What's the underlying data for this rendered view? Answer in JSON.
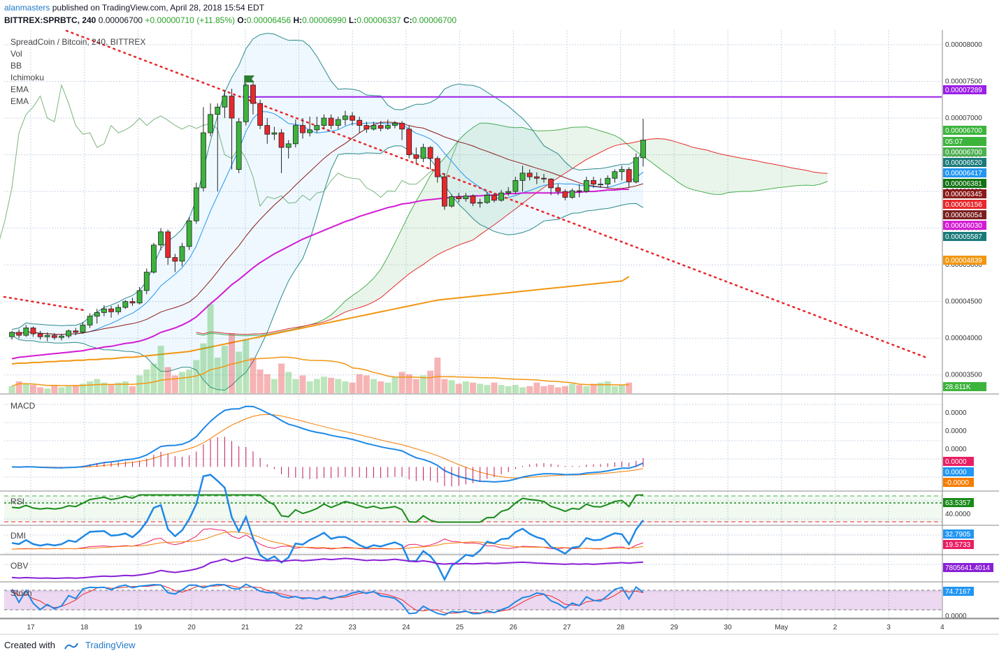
{
  "header": {
    "user": "alanmasters",
    "published_text": "published on TradingView.com, April 28, 2018 15:54 EDT",
    "symbol": "BITTREX:SPRBTC, 240",
    "last": "0.00006700",
    "change": "+0.00000710 (+11.85%)",
    "o_label": "O:",
    "o_value": "0.00006456",
    "h_label": "H:",
    "h_value": "0.00006990",
    "l_label": "L:",
    "l_value": "0.00006337",
    "c_label": "C:",
    "c_value": "0.00006700"
  },
  "legend": {
    "title": "SpreadCoin / Bitcoin, 240, BITTREX",
    "items": [
      "Vol",
      "BB",
      "Ichimoku",
      "EMA",
      "EMA"
    ]
  },
  "panes": {
    "macd": "MACD",
    "rsi": "RSI",
    "dmi": "DMI",
    "obv": "OBV",
    "stoch": "Stoch"
  },
  "footer": {
    "created_with": "Created with",
    "brand": "TradingView"
  },
  "colors": {
    "up": "#3cb43c",
    "down": "#e8282c",
    "grid": "#c8d4e6",
    "bb": "#2a8a8a",
    "ema50": "#d31bd3",
    "ema200": "#f2960f",
    "resistance": "#9a20e6",
    "trendline": "#e8282c"
  },
  "chart_data": [
    {
      "type": "candlestick",
      "title": "SpreadCoin / Bitcoin, 240, BITTREX",
      "x_ticks": [
        "17",
        "18",
        "19",
        "20",
        "21",
        "22",
        "23",
        "24",
        "25",
        "26",
        "27",
        "28",
        "29",
        "30",
        "May",
        "2",
        "3",
        "4"
      ],
      "y_ticks": [
        "0.00008000",
        "0.00007500",
        "0.00007000",
        "0.00006500",
        "0.00006000",
        "0.00005500",
        "0.00005000",
        "0.00004500",
        "0.00004000",
        "0.00003500"
      ],
      "ylim": [
        3.25e-05,
        8.2e-05
      ],
      "price_labels": [
        {
          "text": "0.00007289",
          "color": "#9a20e6"
        },
        {
          "text": "0.00006700",
          "color": "#3cb43c"
        },
        {
          "text": "05:07",
          "color": "#3cb43c"
        },
        {
          "text": "0.00006700",
          "color": "#4caf50"
        },
        {
          "text": "0.00006520",
          "color": "#1a7a7a"
        },
        {
          "text": "0.00006417",
          "color": "#2196f3"
        },
        {
          "text": "0.00006381",
          "color": "#137313"
        },
        {
          "text": "0.00006345",
          "color": "#8b1a1a"
        },
        {
          "text": "0.00006156",
          "color": "#e8282c"
        },
        {
          "text": "0.00006054",
          "color": "#7a1f1f"
        },
        {
          "text": "0.00006030",
          "color": "#d31bd3"
        },
        {
          "text": "0.00005587",
          "color": "#1a7a7a"
        },
        {
          "text": "0.00004839",
          "color": "#f2960f"
        },
        {
          "text": "28.611K",
          "color": "#3cb43c"
        }
      ],
      "resistance": 7.289e-05,
      "candles": [
        [
          4.02e-05,
          4.08e-05,
          3.98e-05,
          4.1e-05
        ],
        [
          4.08e-05,
          4.04e-05,
          4e-05,
          4.12e-05
        ],
        [
          4.04e-05,
          4.14e-05,
          4.02e-05,
          4.18e-05
        ],
        [
          4.14e-05,
          4.06e-05,
          4.02e-05,
          4.16e-05
        ],
        [
          4.06e-05,
          4.02e-05,
          3.98e-05,
          4.1e-05
        ],
        [
          4.02e-05,
          4.04e-05,
          3.96e-05,
          4.08e-05
        ],
        [
          4.04e-05,
          4.01e-05,
          3.98e-05,
          4.07e-05
        ],
        [
          4.01e-05,
          4.03e-05,
          3.97e-05,
          4.06e-05
        ],
        [
          4.03e-05,
          4.1e-05,
          4e-05,
          4.12e-05
        ],
        [
          4.1e-05,
          4.08e-05,
          4.04e-05,
          4.14e-05
        ],
        [
          4.08e-05,
          4.18e-05,
          4.06e-05,
          4.22e-05
        ],
        [
          4.18e-05,
          4.3e-05,
          4.14e-05,
          4.34e-05
        ],
        [
          4.3e-05,
          4.35e-05,
          4.2e-05,
          4.4e-05
        ],
        [
          4.35e-05,
          4.4e-05,
          4.3e-05,
          4.45e-05
        ],
        [
          4.4e-05,
          4.36e-05,
          4.28e-05,
          4.44e-05
        ],
        [
          4.36e-05,
          4.42e-05,
          4.32e-05,
          4.46e-05
        ],
        [
          4.42e-05,
          4.5e-05,
          4.4e-05,
          4.52e-05
        ],
        [
          4.5e-05,
          4.48e-05,
          4.44e-05,
          4.55e-05
        ],
        [
          4.48e-05,
          4.65e-05,
          4.46e-05,
          4.7e-05
        ],
        [
          4.65e-05,
          4.9e-05,
          4.6e-05,
          4.95e-05
        ],
        [
          4.9e-05,
          5.27e-05,
          4.88e-05,
          5.3e-05
        ],
        [
          5.27e-05,
          5.45e-05,
          5.2e-05,
          5.5e-05
        ],
        [
          5.45e-05,
          5.1e-05,
          5e-05,
          5.48e-05
        ],
        [
          5.1e-05,
          5.05e-05,
          4.9e-05,
          5.15e-05
        ],
        [
          5.05e-05,
          5.25e-05,
          4.98e-05,
          5.3e-05
        ],
        [
          5.25e-05,
          5.6e-05,
          5.2e-05,
          5.65e-05
        ],
        [
          5.6e-05,
          6.05e-05,
          5.56e-05,
          6.12e-05
        ],
        [
          6.05e-05,
          6.8e-05,
          6e-05,
          7.15e-05
        ],
        [
          6.8e-05,
          7.05e-05,
          6.75e-05,
          7.2e-05
        ],
        [
          7.05e-05,
          7.15e-05,
          6e-05,
          7.2e-05
        ],
        [
          7.15e-05,
          7.3e-05,
          7e-05,
          7.38e-05
        ],
        [
          7.3e-05,
          7e-05,
          6.3e-05,
          7.4e-05
        ],
        [
          6.3e-05,
          6.95e-05,
          6.25e-05,
          7e-05
        ],
        [
          6.95e-05,
          7.45e-05,
          6.9e-05,
          7.48e-05
        ],
        [
          7.45e-05,
          7.2e-05,
          7.05e-05,
          7.48e-05
        ],
        [
          7.2e-05,
          6.9e-05,
          6.85e-05,
          7.25e-05
        ],
        [
          6.9e-05,
          6.78e-05,
          6.65e-05,
          7e-05
        ],
        [
          6.78e-05,
          6.8e-05,
          6.7e-05,
          6.88e-05
        ],
        [
          6.8e-05,
          6.6e-05,
          6.25e-05,
          6.85e-05
        ],
        [
          6.6e-05,
          6.65e-05,
          6.45e-05,
          6.7e-05
        ],
        [
          6.65e-05,
          6.9e-05,
          6.6e-05,
          6.98e-05
        ],
        [
          6.9e-05,
          6.8e-05,
          6.72e-05,
          7e-05
        ],
        [
          6.8e-05,
          6.84e-05,
          6.75e-05,
          7.02e-05
        ],
        [
          6.84e-05,
          6.9e-05,
          6.8e-05,
          7.02e-05
        ],
        [
          6.9e-05,
          7e-05,
          6.85e-05,
          7.05e-05
        ],
        [
          7e-05,
          6.9e-05,
          6.85e-05,
          7.05e-05
        ],
        [
          6.9e-05,
          6.98e-05,
          6.85e-05,
          7.02e-05
        ],
        [
          6.98e-05,
          7.03e-05,
          6.9e-05,
          7.1e-05
        ],
        [
          7.03e-05,
          6.97e-05,
          6.9e-05,
          7.08e-05
        ],
        [
          6.97e-05,
          6.9e-05,
          6.8e-05,
          7.02e-05
        ],
        [
          6.9e-05,
          6.85e-05,
          6.8e-05,
          6.95e-05
        ],
        [
          6.85e-05,
          6.9e-05,
          6.83e-05,
          6.95e-05
        ],
        [
          6.9e-05,
          6.86e-05,
          6.82e-05,
          6.96e-05
        ],
        [
          6.86e-05,
          6.9e-05,
          6.84e-05,
          6.98e-05
        ],
        [
          6.9e-05,
          6.93e-05,
          6.86e-05,
          6.96e-05
        ],
        [
          6.93e-05,
          6.85e-05,
          6.7e-05,
          6.96e-05
        ],
        [
          6.85e-05,
          6.5e-05,
          6.45e-05,
          6.9e-05
        ],
        [
          6.5e-05,
          6.45e-05,
          6.38e-05,
          6.6e-05
        ],
        [
          6.45e-05,
          6.6e-05,
          6.4e-05,
          6.65e-05
        ],
        [
          6.6e-05,
          6.45e-05,
          6.3e-05,
          6.62e-05
        ],
        [
          6.45e-05,
          6.2e-05,
          6.12e-05,
          6.48e-05
        ],
        [
          6.2e-05,
          5.8e-05,
          5.75e-05,
          6.25e-05
        ],
        [
          5.8e-05,
          5.93e-05,
          5.78e-05,
          5.96e-05
        ],
        [
          5.93e-05,
          5.9e-05,
          5.85e-05,
          5.98e-05
        ],
        [
          5.9e-05,
          5.94e-05,
          5.86e-05,
          5.98e-05
        ],
        [
          5.94e-05,
          5.84e-05,
          5.8e-05,
          5.96e-05
        ],
        [
          5.84e-05,
          5.85e-05,
          5.78e-05,
          5.9e-05
        ],
        [
          5.85e-05,
          5.95e-05,
          5.83e-05,
          6e-05
        ],
        [
          5.95e-05,
          5.88e-05,
          5.85e-05,
          5.98e-05
        ],
        [
          5.88e-05,
          5.98e-05,
          5.86e-05,
          6.02e-05
        ],
        [
          5.98e-05,
          6e-05,
          5.94e-05,
          6.06e-05
        ],
        [
          6e-05,
          6.15e-05,
          5.96e-05,
          6.2e-05
        ],
        [
          6.15e-05,
          6.25e-05,
          6e-05,
          6.35e-05
        ],
        [
          6.25e-05,
          6.2e-05,
          6.15e-05,
          6.3e-05
        ],
        [
          6.2e-05,
          6.18e-05,
          6.1e-05,
          6.26e-05
        ],
        [
          6.18e-05,
          6.17e-05,
          6.12e-05,
          6.24e-05
        ],
        [
          6.17e-05,
          6.05e-05,
          5.95e-05,
          6.18e-05
        ],
        [
          6.05e-05,
          6e-05,
          5.95e-05,
          6.1e-05
        ],
        [
          6e-05,
          5.92e-05,
          5.88e-05,
          6.03e-05
        ],
        [
          5.92e-05,
          6.01e-05,
          5.9e-05,
          6.04e-05
        ],
        [
          6.01e-05,
          6e-05,
          5.92e-05,
          6.1e-05
        ],
        [
          6e-05,
          6.15e-05,
          5.98e-05,
          6.2e-05
        ],
        [
          6.15e-05,
          6.1e-05,
          6.05e-05,
          6.2e-05
        ],
        [
          6.1e-05,
          6.1e-05,
          6.05e-05,
          6.18e-05
        ],
        [
          6.1e-05,
          6.18e-05,
          6.05e-05,
          6.22e-05
        ],
        [
          6.18e-05,
          6.27e-05,
          6.12e-05,
          6.3e-05
        ],
        [
          6.27e-05,
          6.3e-05,
          6.15e-05,
          6.35e-05
        ],
        [
          6.3e-05,
          6.13e-05,
          6.05e-05,
          6.33e-05
        ],
        [
          6.13e-05,
          6.46e-05,
          6.11e-05,
          6.52e-05
        ],
        [
          6.46e-05,
          6.7e-05,
          6.34e-05,
          6.99e-05
        ]
      ],
      "volume": [
        0.6,
        1.0,
        0.8,
        0.7,
        0.5,
        0.4,
        0.7,
        0.5,
        0.6,
        0.7,
        0.8,
        1.0,
        1.2,
        0.9,
        0.7,
        0.9,
        1.0,
        0.6,
        1.5,
        2.0,
        2.5,
        4.0,
        2.2,
        1.5,
        1.8,
        2.0,
        2.8,
        4.2,
        7.5,
        3.0,
        4.0,
        5.0,
        3.5,
        4.5,
        3.0,
        2.0,
        1.6,
        1.2,
        2.5,
        1.8,
        1.2,
        1.5,
        1.0,
        1.2,
        1.4,
        1.3,
        1.2,
        1.0,
        0.9,
        1.6,
        1.5,
        1.2,
        1.0,
        0.9,
        1.4,
        1.8,
        1.6,
        1.2,
        1.5,
        1.9,
        3.0,
        1.2,
        1.1,
        0.8,
        1.0,
        0.9,
        0.8,
        0.7,
        0.9,
        0.7,
        0.6,
        0.7,
        0.5,
        0.6,
        0.9,
        0.6,
        0.7,
        0.5,
        0.6,
        0.8,
        0.7,
        0.6,
        0.8,
        0.9,
        1.0,
        0.6,
        0.7,
        0.9
      ],
      "ema50": [
        3.72e-05,
        3.74e-05,
        3.75e-05,
        3.76e-05,
        3.77e-05,
        3.78e-05,
        3.79e-05,
        3.8e-05,
        3.81e-05,
        3.82e-05,
        3.83e-05,
        3.85e-05,
        3.86e-05,
        3.88e-05,
        3.89e-05,
        3.91e-05,
        3.93e-05,
        3.94e-05,
        3.96e-05,
        3.99e-05,
        4.03e-05,
        4.08e-05,
        4.11e-05,
        4.14e-05,
        4.18e-05,
        4.23e-05,
        4.29e-05,
        4.38e-05,
        4.47e-05,
        4.55e-05,
        4.64e-05,
        4.73e-05,
        4.8e-05,
        4.88e-05,
        4.96e-05,
        5.03e-05,
        5.09e-05,
        5.15e-05,
        5.2e-05,
        5.25e-05,
        5.3e-05,
        5.35e-05,
        5.39e-05,
        5.43e-05,
        5.47e-05,
        5.51e-05,
        5.55e-05,
        5.59e-05,
        5.62e-05,
        5.66e-05,
        5.69e-05,
        5.72e-05,
        5.75e-05,
        5.78e-05,
        5.8e-05,
        5.83e-05,
        5.84e-05,
        5.86e-05,
        5.88e-05,
        5.89e-05,
        5.9e-05,
        5.91e-05,
        5.92e-05,
        5.93e-05,
        5.93e-05,
        5.94e-05,
        5.94e-05,
        5.95e-05,
        5.95e-05,
        5.96e-05,
        5.97e-05,
        5.97e-05,
        5.98e-05,
        5.98e-05,
        5.98e-05,
        5.98e-05,
        5.98e-05,
        5.98e-05,
        5.99e-05,
        5.99e-05,
        5.99e-05,
        6e-05,
        6e-05,
        6.01e-05,
        6.02e-05,
        6.02e-05,
        6.03e-05,
        6.03e-05
      ],
      "ema200": [
        3.65e-05,
        3.66e-05,
        3.66e-05,
        3.67e-05,
        3.67e-05,
        3.68e-05,
        3.68e-05,
        3.69e-05,
        3.69e-05,
        3.7e-05,
        3.7e-05,
        3.71e-05,
        3.71e-05,
        3.72e-05,
        3.72e-05,
        3.73e-05,
        3.74e-05,
        3.74e-05,
        3.75e-05,
        3.76e-05,
        3.77e-05,
        3.78e-05,
        3.79e-05,
        3.8e-05,
        3.81e-05,
        3.82e-05,
        3.84e-05,
        3.86e-05,
        3.88e-05,
        3.9e-05,
        3.92e-05,
        3.94e-05,
        3.96e-05,
        3.98e-05,
        4e-05,
        4.02e-05,
        4.04e-05,
        4.06e-05,
        4.08e-05,
        4.1e-05,
        4.12e-05,
        4.14e-05,
        4.16e-05,
        4.18e-05,
        4.2e-05,
        4.22e-05,
        4.24e-05,
        4.26e-05,
        4.28e-05,
        4.3e-05,
        4.32e-05,
        4.34e-05,
        4.36e-05,
        4.38e-05,
        4.4e-05,
        4.42e-05,
        4.44e-05,
        4.46e-05,
        4.48e-05,
        4.5e-05,
        4.52e-05,
        4.53e-05,
        4.54e-05,
        4.55e-05,
        4.56e-05,
        4.57e-05,
        4.58e-05,
        4.59e-05,
        4.6e-05,
        4.61e-05,
        4.62e-05,
        4.63e-05,
        4.64e-05,
        4.65e-05,
        4.66e-05,
        4.67e-05,
        4.68e-05,
        4.69e-05,
        4.7e-05,
        4.71e-05,
        4.72e-05,
        4.73e-05,
        4.74e-05,
        4.75e-05,
        4.76e-05,
        4.77e-05,
        4.78e-05,
        4.84e-05
      ]
    },
    {
      "type": "line",
      "title": "MACD",
      "y_ticks": [
        "0.0000",
        "0.0000",
        "0.0000",
        "-0.0000"
      ],
      "value_labels": [
        {
          "text": "0.0000",
          "color": "#e91e63"
        },
        {
          "text": "0.0000",
          "color": "#2196f3"
        },
        {
          "text": "-0.0000",
          "color": "#f57c00"
        }
      ]
    },
    {
      "type": "line",
      "title": "RSI",
      "y_ticks": [
        "40.0000"
      ],
      "value_labels": [
        {
          "text": "63.5357",
          "color": "#1a8a1a"
        }
      ],
      "last_value": 63.5357
    },
    {
      "type": "line",
      "title": "DMI",
      "value_labels": [
        {
          "text": "32.7905",
          "color": "#2196f3"
        },
        {
          "text": "19.5733",
          "color": "#e91e63"
        }
      ]
    },
    {
      "type": "line",
      "title": "OBV",
      "value_labels": [
        {
          "text": "7805641.4014",
          "color": "#8a20d6"
        }
      ]
    },
    {
      "type": "line",
      "title": "Stoch",
      "y_ticks": [
        "0.0000"
      ],
      "value_labels": [
        {
          "text": "74.7167",
          "color": "#2196f3"
        }
      ]
    }
  ]
}
